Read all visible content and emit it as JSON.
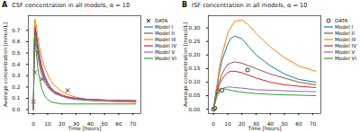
{
  "chart_data": [
    {
      "type": "line",
      "panel": "A",
      "title": "CSF concentration in all models, α = 10",
      "x_label": "Time [hours]",
      "y_label": "Average concentration [mmol/L]",
      "x": [
        0,
        0.5,
        1,
        2,
        3,
        4,
        6,
        8,
        10,
        12,
        15,
        20,
        25,
        30,
        40,
        50,
        60,
        72
      ],
      "xlim": [
        -3.6,
        75.6
      ],
      "xticks": [
        0,
        10,
        20,
        30,
        40,
        50,
        60,
        70
      ],
      "ylim": [
        -0.035,
        0.83
      ],
      "yticks": [
        {
          "value": 0,
          "label": "0.0"
        },
        0.1,
        0.2,
        0.3,
        0.4,
        0.5,
        0.6,
        0.7
      ],
      "grid": false,
      "legend": "right",
      "series": [
        {
          "name": "DATA",
          "type": "scatter",
          "marker": "x",
          "color": "#000000",
          "x": [
            0,
            1,
            3,
            6,
            24
          ],
          "values": [
            0.07,
            0.33,
            0.5,
            0.27,
            0.17
          ]
        },
        {
          "name": "Model I",
          "type": "line",
          "color": "#1f77b4",
          "values": [
            0,
            0.55,
            0.75,
            0.68,
            0.58,
            0.5,
            0.38,
            0.3,
            0.24,
            0.2,
            0.16,
            0.12,
            0.1,
            0.09,
            0.08,
            0.075,
            0.072,
            0.07
          ]
        },
        {
          "name": "Model II",
          "type": "line",
          "color": "#8c564b",
          "values": [
            0,
            0.5,
            0.7,
            0.62,
            0.52,
            0.44,
            0.33,
            0.26,
            0.21,
            0.18,
            0.15,
            0.12,
            0.11,
            0.1,
            0.09,
            0.085,
            0.08,
            0.078
          ]
        },
        {
          "name": "Model III",
          "type": "line",
          "color": "#ff7f0e",
          "values": [
            0,
            0.6,
            0.8,
            0.75,
            0.65,
            0.57,
            0.45,
            0.37,
            0.31,
            0.26,
            0.21,
            0.16,
            0.13,
            0.11,
            0.085,
            0.075,
            0.07,
            0.065
          ]
        },
        {
          "name": "Model IV",
          "type": "line",
          "color": "#d62728",
          "values": [
            0,
            0.52,
            0.72,
            0.64,
            0.54,
            0.46,
            0.35,
            0.28,
            0.23,
            0.19,
            0.16,
            0.13,
            0.11,
            0.1,
            0.09,
            0.085,
            0.082,
            0.08
          ]
        },
        {
          "name": "Model V",
          "type": "line",
          "color": "#9467bd",
          "values": [
            0,
            0.48,
            0.66,
            0.58,
            0.48,
            0.4,
            0.3,
            0.24,
            0.2,
            0.17,
            0.14,
            0.12,
            0.1,
            0.095,
            0.09,
            0.085,
            0.08,
            0.078
          ]
        },
        {
          "name": "Model VI",
          "type": "line",
          "color": "#2ca02c",
          "values": [
            0,
            0.5,
            0.65,
            0.5,
            0.38,
            0.29,
            0.18,
            0.12,
            0.09,
            0.07,
            0.06,
            0.05,
            0.05,
            0.05,
            0.05,
            0.05,
            0.05,
            0.05
          ]
        }
      ]
    },
    {
      "type": "line",
      "panel": "B",
      "title": "ISF concentration in all models, α = 10",
      "x_label": "Time [hours]",
      "y_label": "Average concentration [mmol/L]",
      "x": [
        0,
        0.5,
        1,
        2,
        3,
        4,
        6,
        8,
        10,
        12,
        15,
        20,
        25,
        30,
        40,
        50,
        60,
        72
      ],
      "xlim": [
        -3.6,
        75.6
      ],
      "xticks": [
        0,
        10,
        20,
        30,
        40,
        50,
        60,
        70
      ],
      "ylim": [
        -0.016,
        0.345
      ],
      "yticks": [
        {
          "value": 0,
          "label": "0.00"
        },
        0.05,
        {
          "value": 0.1,
          "label": "0.10"
        },
        0.15,
        {
          "value": 0.2,
          "label": "0.20"
        },
        0.25,
        {
          "value": 0.3,
          "label": "0.30"
        }
      ],
      "grid": false,
      "legend": "right",
      "series": [
        {
          "name": "DATA",
          "type": "scatter",
          "marker": "o",
          "color": "#000000",
          "x": [
            0,
            1,
            3,
            6,
            24
          ],
          "values": [
            0,
            0.004,
            0.065,
            0.07,
            0.145
          ]
        },
        {
          "name": "Model I",
          "type": "line",
          "color": "#1f77b4",
          "values": [
            0,
            0.01,
            0.03,
            0.07,
            0.1,
            0.13,
            0.18,
            0.21,
            0.24,
            0.26,
            0.27,
            0.26,
            0.23,
            0.2,
            0.16,
            0.13,
            0.11,
            0.1
          ]
        },
        {
          "name": "Model II",
          "type": "line",
          "color": "#8c564b",
          "values": [
            0,
            0.01,
            0.025,
            0.05,
            0.08,
            0.1,
            0.13,
            0.15,
            0.165,
            0.17,
            0.175,
            0.17,
            0.16,
            0.15,
            0.13,
            0.115,
            0.1,
            0.09
          ]
        },
        {
          "name": "Model III",
          "type": "line",
          "color": "#ff7f0e",
          "values": [
            0,
            0.01,
            0.03,
            0.07,
            0.11,
            0.15,
            0.2,
            0.24,
            0.28,
            0.3,
            0.325,
            0.33,
            0.31,
            0.28,
            0.23,
            0.19,
            0.16,
            0.14
          ]
        },
        {
          "name": "Model IV",
          "type": "line",
          "color": "#d62728",
          "values": [
            0,
            0.01,
            0.02,
            0.045,
            0.07,
            0.09,
            0.11,
            0.125,
            0.135,
            0.14,
            0.14,
            0.135,
            0.125,
            0.115,
            0.1,
            0.09,
            0.085,
            0.08
          ]
        },
        {
          "name": "Model V",
          "type": "line",
          "color": "#9467bd",
          "values": [
            0,
            0.01,
            0.02,
            0.04,
            0.055,
            0.065,
            0.075,
            0.08,
            0.082,
            0.082,
            0.08,
            0.078,
            0.075,
            0.072,
            0.07,
            0.068,
            0.066,
            0.065
          ]
        },
        {
          "name": "Model VI",
          "type": "line",
          "color": "#2ca02c",
          "values": [
            0,
            0.02,
            0.04,
            0.06,
            0.07,
            0.075,
            0.076,
            0.075,
            0.073,
            0.07,
            0.067,
            0.063,
            0.06,
            0.058,
            0.055,
            0.053,
            0.052,
            0.05
          ]
        }
      ]
    }
  ]
}
